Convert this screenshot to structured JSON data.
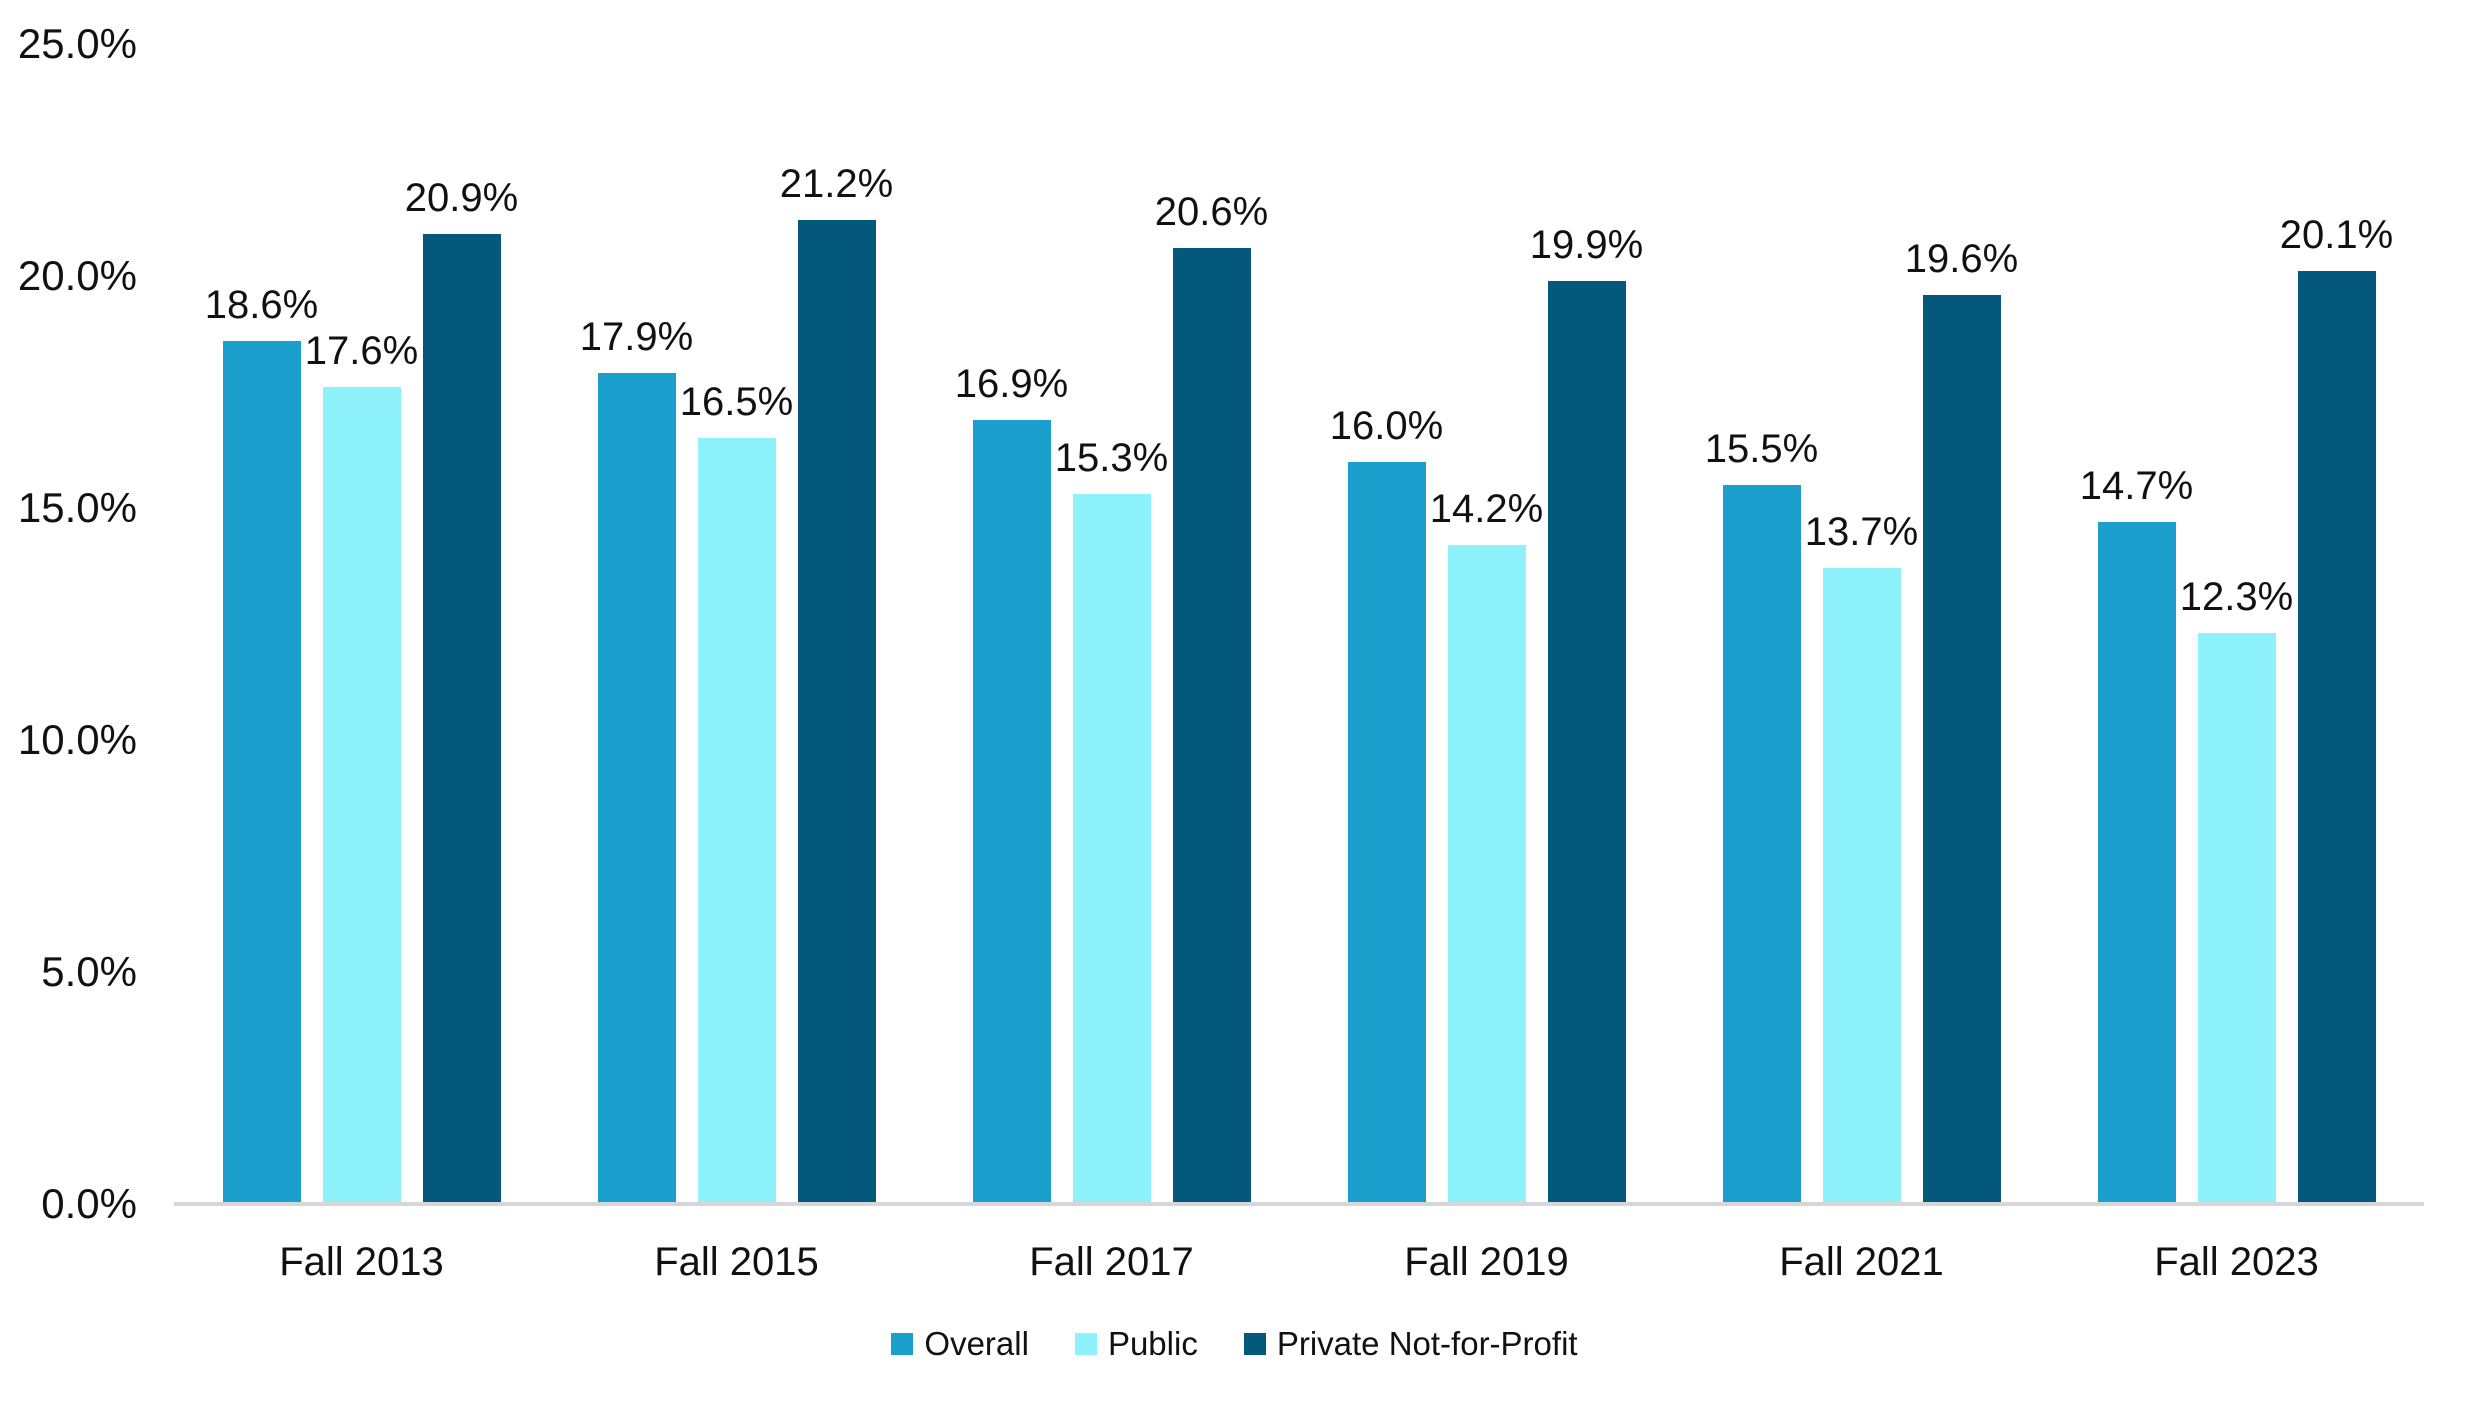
{
  "chart_data": {
    "type": "bar",
    "title": "",
    "categories": [
      "Fall 2013",
      "Fall 2015",
      "Fall 2017",
      "Fall 2019",
      "Fall 2021",
      "Fall 2023"
    ],
    "series": [
      {
        "name": "Overall",
        "color": "#1BA0CE",
        "values": [
          18.6,
          17.9,
          16.9,
          16.0,
          15.5,
          14.7
        ]
      },
      {
        "name": "Public",
        "color": "#8DF2FB",
        "values": [
          17.6,
          16.5,
          15.3,
          14.2,
          13.7,
          12.3
        ]
      },
      {
        "name": "Private Not-for-Profit",
        "color": "#04587C",
        "values": [
          20.9,
          21.2,
          20.6,
          19.9,
          19.6,
          20.1
        ]
      }
    ],
    "data_label_suffix": "%",
    "y_axis": {
      "tick_labels": [
        "0.0%",
        "5.0%",
        "10.0%",
        "15.0%",
        "20.0%",
        "25.0%"
      ],
      "tick_values": [
        0,
        5,
        10,
        15,
        20,
        25
      ],
      "min": 0,
      "max": 25
    },
    "legend_position": "bottom",
    "grid": false,
    "colors": {
      "axis_line": "#D6D6D6",
      "text": "#111111",
      "background": "#FFFFFF"
    }
  }
}
